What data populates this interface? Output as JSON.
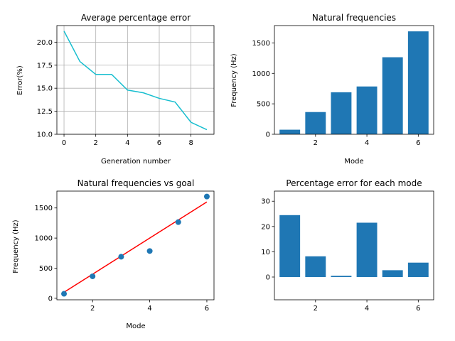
{
  "figure": {
    "background": "#ffffff"
  },
  "chart_data": [
    {
      "type": "line",
      "title": "Average percentage error",
      "xlabel": "Generation number",
      "ylabel": "Error(%)",
      "grid": true,
      "color": "#17becf",
      "xlim": [
        -0.45,
        9.45
      ],
      "ylim": [
        10.0,
        21.8
      ],
      "xticks": [
        0,
        2,
        4,
        6,
        8
      ],
      "xticklabels": [
        "0",
        "2",
        "4",
        "6",
        "8"
      ],
      "yticks": [
        10.0,
        12.5,
        15.0,
        17.5,
        20.0
      ],
      "yticklabels": [
        "10.0",
        "12.5",
        "15.0",
        "17.5",
        "20.0"
      ],
      "x": [
        0,
        1,
        2,
        3,
        4,
        5,
        6,
        7,
        8,
        9
      ],
      "y": [
        21.2,
        17.9,
        16.5,
        16.5,
        14.8,
        14.5,
        13.9,
        13.5,
        11.3,
        10.5
      ]
    },
    {
      "type": "bar",
      "title": "Natural frequencies",
      "xlabel": "Mode",
      "ylabel": "Frequency (Hz)",
      "grid": false,
      "color": "#1f77b4",
      "xlim": [
        0.4,
        6.6
      ],
      "ylim": [
        0,
        1785
      ],
      "xticks": [
        2,
        4,
        6
      ],
      "xticklabels": [
        "2",
        "4",
        "6"
      ],
      "yticks": [
        0,
        500,
        1000,
        1500
      ],
      "yticklabels": [
        "0",
        "500",
        "1000",
        "1500"
      ],
      "categories": [
        1,
        2,
        3,
        4,
        5,
        6
      ],
      "values": [
        75,
        365,
        690,
        785,
        1265,
        1690
      ]
    },
    {
      "type": "scatter",
      "title": "Natural frequencies vs goal",
      "xlabel": "Mode",
      "ylabel": "Frequency (Hz)",
      "grid": false,
      "color": "#1f77b4",
      "line_color": "#ff0000",
      "xlim": [
        0.75,
        6.25
      ],
      "ylim": [
        -25,
        1780
      ],
      "xticks": [
        2,
        4,
        6
      ],
      "xticklabels": [
        "2",
        "4",
        "6"
      ],
      "yticks": [
        0,
        500,
        1000,
        1500
      ],
      "yticklabels": [
        "0",
        "500",
        "1000",
        "1500"
      ],
      "points": {
        "x": [
          1,
          2,
          3,
          4,
          5,
          6
        ],
        "y": [
          75,
          365,
          690,
          785,
          1265,
          1690
        ]
      },
      "goal_line": {
        "x": [
          1,
          6
        ],
        "y": [
          100,
          1600
        ]
      }
    },
    {
      "type": "bar",
      "title": "Percentage error for each mode",
      "xlabel": "",
      "ylabel": "",
      "grid": false,
      "color": "#1f77b4",
      "xlim": [
        0.4,
        6.6
      ],
      "ylim": [
        -9,
        34
      ],
      "xticks": [
        2,
        4,
        6
      ],
      "xticklabels": [
        "2",
        "4",
        "6"
      ],
      "yticks": [
        0,
        10,
        20,
        30
      ],
      "yticklabels": [
        "0",
        "10",
        "20",
        "30"
      ],
      "categories": [
        1,
        2,
        3,
        4,
        5,
        6
      ],
      "values": [
        24.5,
        8.2,
        0.5,
        21.5,
        2.7,
        5.7
      ]
    }
  ]
}
